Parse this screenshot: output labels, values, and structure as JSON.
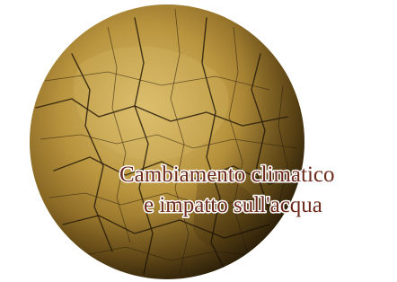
{
  "text": {
    "line1": "Cambiamento climatico",
    "line2": "e impatto sull'acqua"
  }
}
